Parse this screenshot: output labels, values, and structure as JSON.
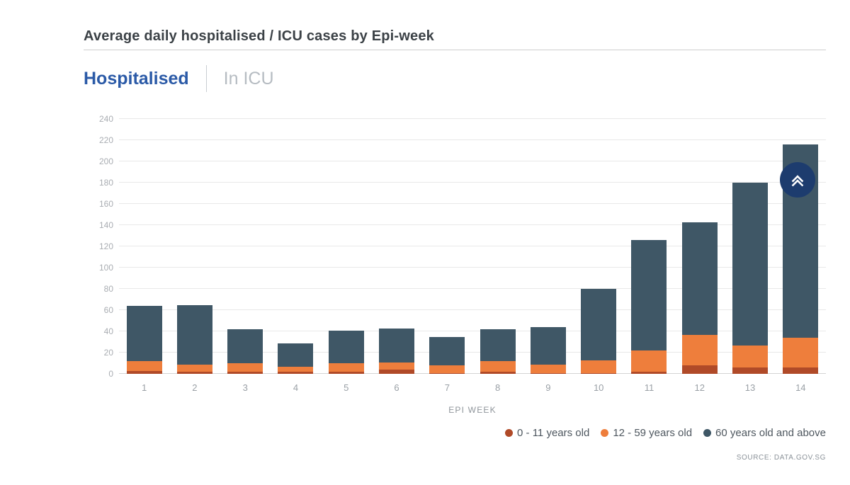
{
  "page": {
    "title": "Average daily hospitalised / ICU cases by Epi-week",
    "source": "SOURCE: DATA.GOV.SG"
  },
  "tabs": [
    {
      "label": "Hospitalised",
      "active": true
    },
    {
      "label": "In ICU",
      "active": false
    }
  ],
  "colors": {
    "accent_blue": "#2b5aa7",
    "scroll_button_navy": "#1d3c6e"
  },
  "chart_data": {
    "type": "bar",
    "stacked": true,
    "title": "Average daily hospitalised / ICU cases by Epi-week",
    "xlabel": "EPI WEEK",
    "ylabel": "",
    "ylim": [
      0,
      240
    ],
    "ytick_step": 20,
    "grid": true,
    "legend_position": "bottom-right",
    "categories": [
      "1",
      "2",
      "3",
      "4",
      "5",
      "6",
      "7",
      "8",
      "9",
      "10",
      "11",
      "12",
      "13",
      "14"
    ],
    "series": [
      {
        "name": "0 - 11 years old",
        "color": "#b04a28",
        "values": [
          3,
          2,
          2,
          2,
          2,
          4,
          1,
          2,
          1,
          1,
          2,
          8,
          6,
          6
        ]
      },
      {
        "name": "12 - 59 years old",
        "color": "#ee7e3c",
        "values": [
          9,
          7,
          8,
          5,
          8,
          7,
          7,
          10,
          8,
          12,
          20,
          29,
          21,
          28
        ]
      },
      {
        "name": "60 years old and above",
        "color": "#3f5766",
        "values": [
          52,
          56,
          32,
          22,
          31,
          32,
          27,
          30,
          35,
          67,
          104,
          106,
          153,
          182
        ]
      }
    ],
    "totals": [
      64,
      65,
      42,
      29,
      41,
      43,
      35,
      42,
      44,
      80,
      126,
      143,
      180,
      216
    ]
  },
  "scroll_top_button": {
    "icon": "chevron-double-up"
  }
}
